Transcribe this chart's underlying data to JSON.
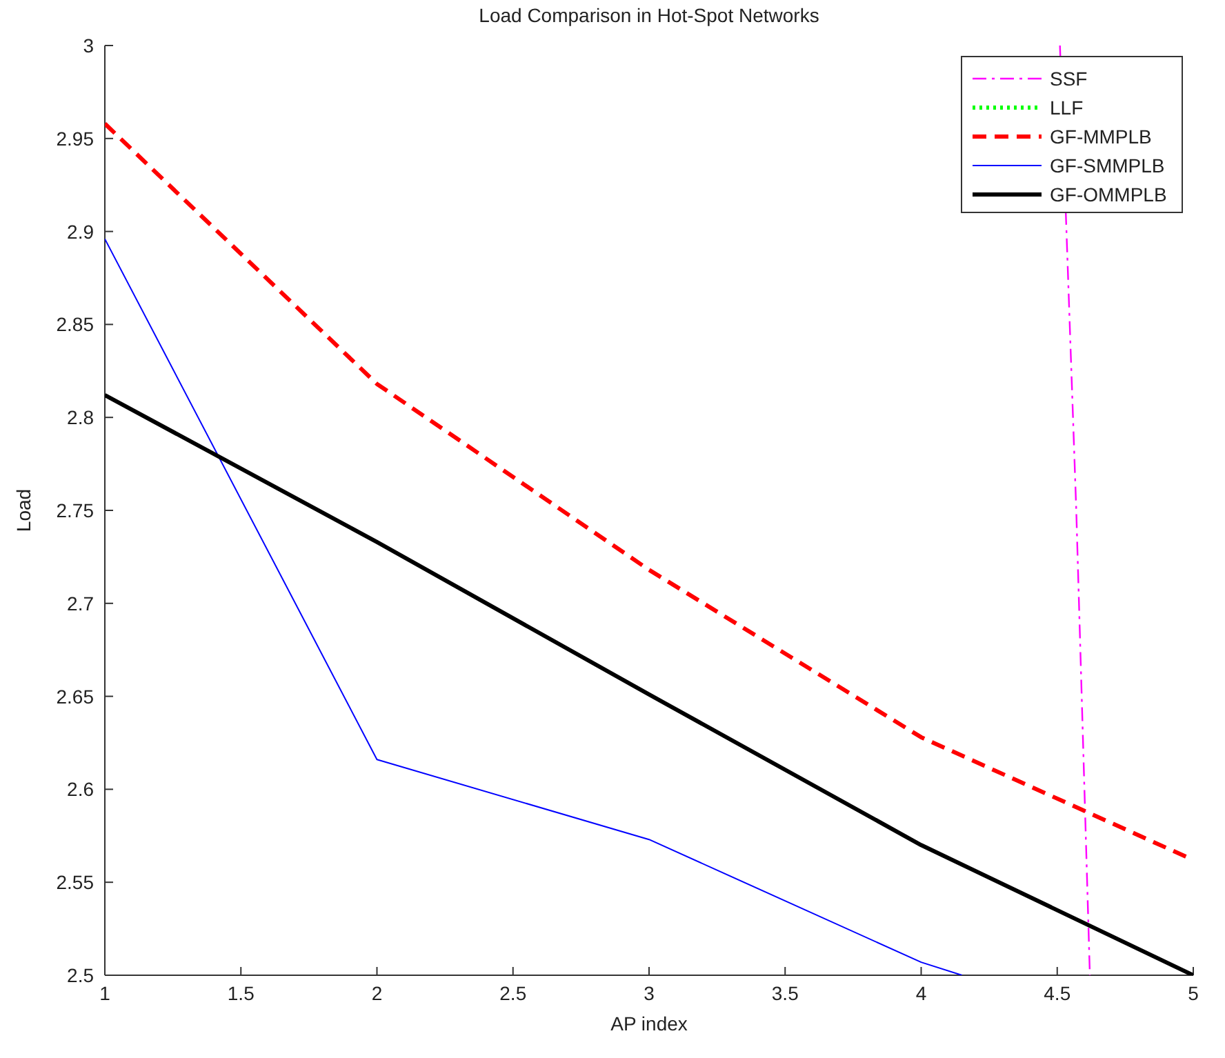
{
  "chart_data": {
    "type": "line",
    "title": "Load Comparison in Hot-Spot Networks",
    "xlabel": "AP index",
    "ylabel": "Load",
    "xlim": [
      1,
      5
    ],
    "xticks": [
      1,
      1.5,
      2,
      2.5,
      3,
      3.5,
      4,
      4.5,
      5
    ],
    "ylim": [
      2.5,
      3
    ],
    "yticks": [
      2.5,
      2.55,
      2.6,
      2.65,
      2.7,
      2.75,
      2.8,
      2.85,
      2.9,
      2.95,
      3
    ],
    "grid": false,
    "legend": "top right",
    "series": [
      {
        "name": "SSF",
        "color": "#ff00ff",
        "line_style": "dashdot",
        "x": [
          4.51,
          4.57,
          4.62
        ],
        "values": [
          3,
          2.75,
          2.5
        ]
      },
      {
        "name": "LLF",
        "color": "#00ff00",
        "line_style": "dotted"
      },
      {
        "name": "GF-MMPLB",
        "color": "#ff0000",
        "line_style": "dashed",
        "x": [
          1,
          2,
          3,
          4,
          5
        ],
        "values": [
          2.958,
          2.818,
          2.718,
          2.628,
          2.562
        ]
      },
      {
        "name": "GF-SMMPLB",
        "color": "#0000ff",
        "line_style": "solid",
        "x": [
          1,
          2,
          3,
          4,
          4.15
        ],
        "values": [
          2.896,
          2.616,
          2.573,
          2.507,
          2.5
        ]
      },
      {
        "name": "GF-OMMPLB",
        "color": "#000000",
        "line_style": "solid",
        "x": [
          1,
          2,
          3,
          4,
          5
        ],
        "values": [
          2.812,
          2.733,
          2.651,
          2.57,
          2.5
        ]
      }
    ]
  }
}
